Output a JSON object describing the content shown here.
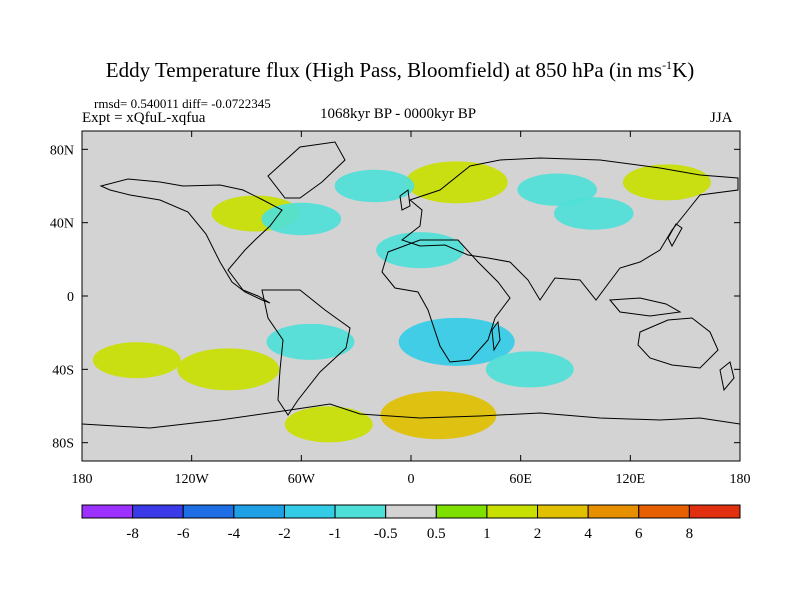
{
  "title": {
    "main": "Eddy Temperature flux (High Pass, Bloomfield) at 850 hPa (in ms",
    "sup": "-1",
    "unit_tail": "K)"
  },
  "stats_text": "rmsd= 0.540011 diff= -0.0722345",
  "expt_text": "Expt = xQfuL-xqfua",
  "period_text": "1068kyr BP - 0000kyr BP",
  "season_text": "JJA",
  "chart_data": {
    "type": "heatmap",
    "projection": "cylindrical-equidistant world map",
    "variable": "Eddy Temperature flux (High Pass, Bloomfield) at 850 hPa",
    "units": "ms-1K",
    "xlim": [
      -180,
      180
    ],
    "ylim": [
      -90,
      90
    ],
    "x_ticks": [
      -180,
      -120,
      -60,
      0,
      60,
      120,
      180
    ],
    "x_tick_labels": [
      "180",
      "120W",
      "60W",
      "0",
      "60E",
      "120E",
      "180"
    ],
    "y_ticks": [
      80,
      40,
      0,
      -40,
      -80
    ],
    "y_tick_labels": [
      "80N",
      "40N",
      "0",
      "40S",
      "80S"
    ],
    "colorbar": {
      "levels": [
        -8,
        -6,
        -4,
        -2,
        -1,
        -0.5,
        0.5,
        1,
        2,
        4,
        6,
        8
      ],
      "labels": [
        "-8",
        "-6",
        "-4",
        "-2",
        "-1",
        "-0.5",
        "0.5",
        "1",
        "2",
        "4",
        "6",
        "8"
      ],
      "colors": [
        "#9b30ff",
        "#3a3ae8",
        "#1e6fe6",
        "#1fa0e6",
        "#33cce6",
        "#4ee0d8",
        "#d3d3d3",
        "#7ee000",
        "#c8e000",
        "#e0c000",
        "#e69000",
        "#e66000",
        "#e03010"
      ]
    },
    "anomaly_regions": [
      {
        "lon": -100,
        "lat": -40,
        "value": 1.5
      },
      {
        "lon": -150,
        "lat": -35,
        "value": 1
      },
      {
        "lon": -55,
        "lat": -25,
        "value": -1
      },
      {
        "lon": -45,
        "lat": -70,
        "value": 1
      },
      {
        "lon": 15,
        "lat": -65,
        "value": 2
      },
      {
        "lon": 25,
        "lat": -25,
        "value": -2
      },
      {
        "lon": 65,
        "lat": -40,
        "value": -1
      },
      {
        "lon": 5,
        "lat": 25,
        "value": -1
      },
      {
        "lon": 25,
        "lat": 62,
        "value": 1.5
      },
      {
        "lon": -85,
        "lat": 45,
        "value": 1
      },
      {
        "lon": -60,
        "lat": 42,
        "value": -0.7
      },
      {
        "lon": -20,
        "lat": 60,
        "value": -0.7
      },
      {
        "lon": 100,
        "lat": 45,
        "value": -0.7
      },
      {
        "lon": 140,
        "lat": 62,
        "value": 1
      },
      {
        "lon": 80,
        "lat": 58,
        "value": -0.7
      }
    ]
  }
}
